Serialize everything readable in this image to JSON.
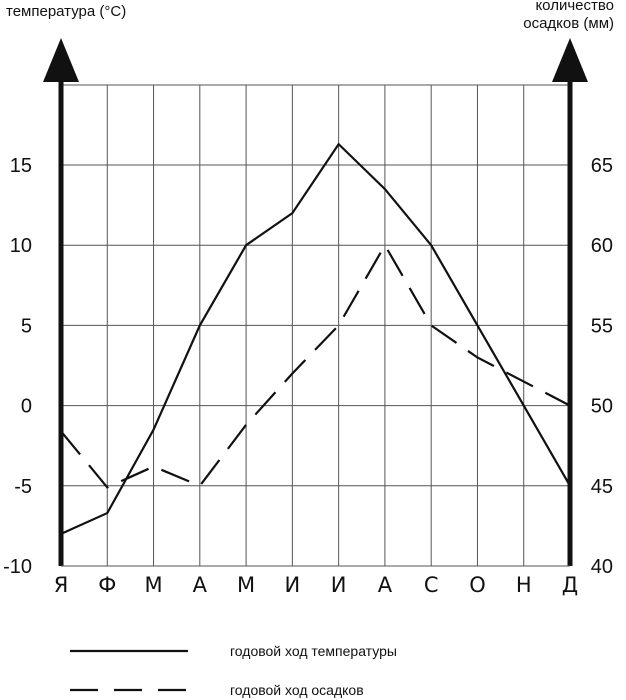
{
  "chart_data": {
    "type": "line",
    "categories": [
      "Я",
      "Ф",
      "М",
      "А",
      "М",
      "И",
      "И",
      "А",
      "С",
      "О",
      "Н",
      "Д"
    ],
    "left_axis": {
      "title": "температура (°С)",
      "ylim": [
        -10,
        20
      ],
      "ticks": [
        15,
        10,
        5,
        0,
        -5,
        -10
      ]
    },
    "right_axis": {
      "title_line1": "количество",
      "title_line2": "осадков (мм)",
      "ylim": [
        40,
        70
      ],
      "ticks": [
        65,
        60,
        55,
        50,
        45,
        40
      ]
    },
    "series": [
      {
        "name": "годовой ход температуры",
        "axis": "left",
        "style": "solid",
        "values": [
          -8,
          -6.7,
          -1.5,
          5,
          10,
          12,
          16.3,
          13.5,
          10,
          5,
          0,
          -5
        ]
      },
      {
        "name": "годовой ход осадков",
        "axis": "right",
        "style": "dashed",
        "values": [
          48.4,
          44.9,
          46.2,
          45,
          48.8,
          52,
          55,
          60,
          55,
          53,
          51.5,
          50
        ]
      }
    ],
    "grid": true,
    "legend_position": "bottom"
  },
  "colors": {
    "ink": "#111111",
    "grid": "#555555",
    "background": "#ffffff"
  }
}
